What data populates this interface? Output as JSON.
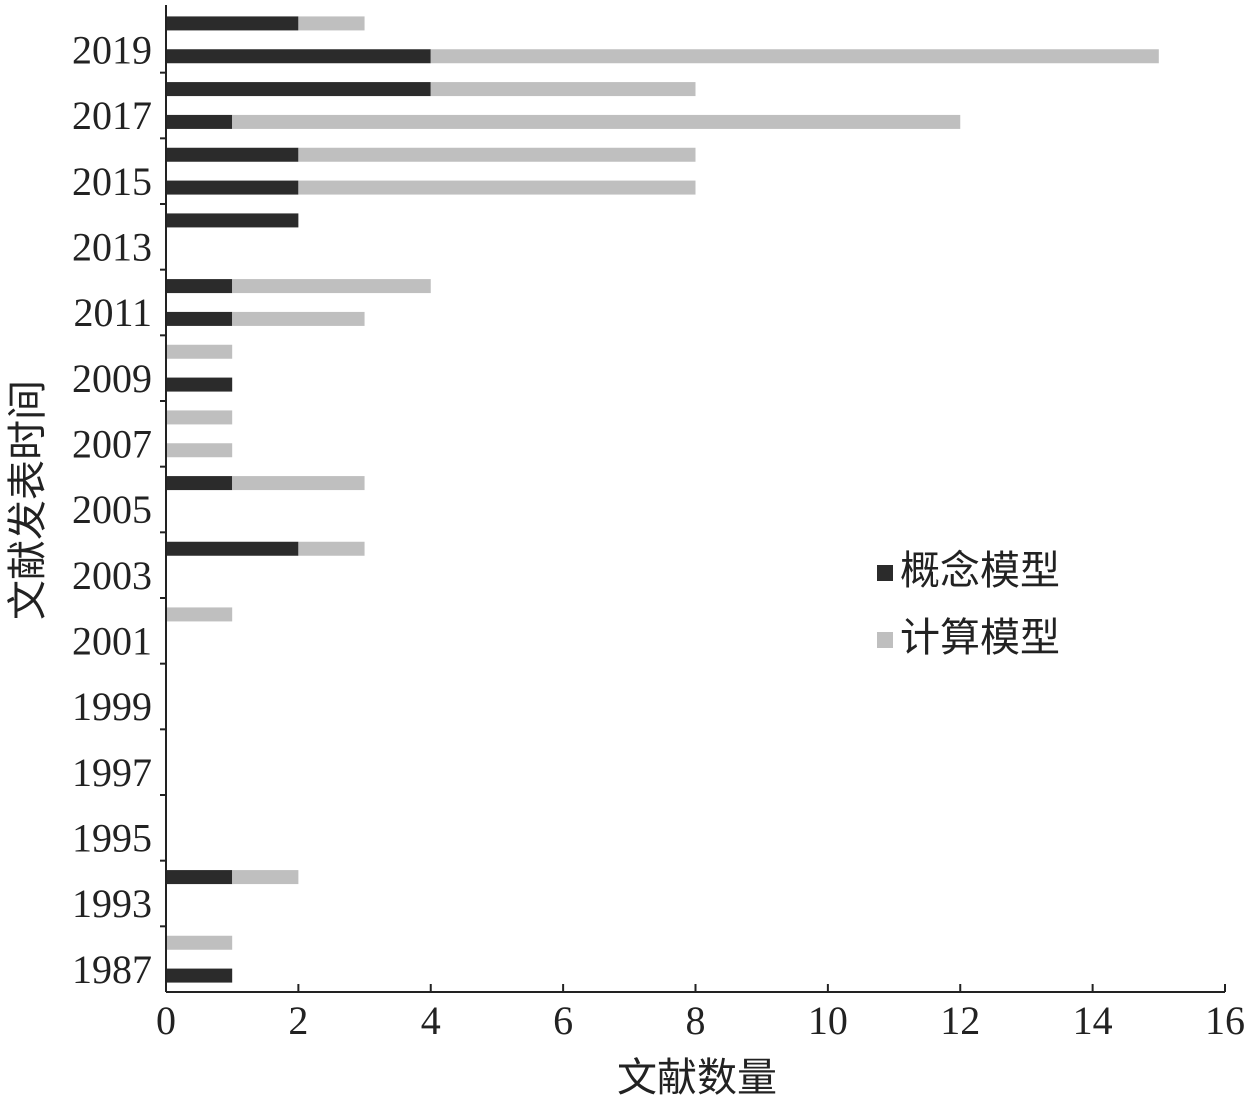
{
  "chart_data": {
    "type": "stacked-barh",
    "x_label": "文献数量",
    "y_label": "文献发表时间",
    "categories": [
      "1987",
      null,
      "1993",
      null,
      "1995",
      null,
      "1997",
      null,
      "1999",
      null,
      "2001",
      null,
      "2003",
      null,
      "2005",
      null,
      "2007",
      null,
      "2009",
      null,
      "2011",
      null,
      "2013",
      null,
      "2015",
      null,
      "2017",
      null,
      "2019",
      null
    ],
    "series": [
      {
        "name": "概念模型",
        "color": "#2b2b2b",
        "values": [
          1,
          0,
          0,
          1,
          0,
          0,
          0,
          0,
          0,
          0,
          0,
          0,
          0,
          2,
          0,
          1,
          0,
          0,
          1,
          0,
          1,
          1,
          0,
          2,
          2,
          2,
          1,
          4,
          4,
          2
        ]
      },
      {
        "name": "计算模型",
        "color": "#bfbfbf",
        "values": [
          0,
          1,
          0,
          1,
          0,
          0,
          0,
          0,
          0,
          0,
          0,
          1,
          0,
          1,
          0,
          2,
          1,
          1,
          0,
          1,
          2,
          3,
          0,
          0,
          6,
          6,
          11,
          4,
          11,
          1
        ]
      }
    ],
    "xlim": [
      0,
      16
    ],
    "xticks": [
      0,
      2,
      4,
      6,
      8,
      10,
      12,
      14,
      16
    ]
  }
}
